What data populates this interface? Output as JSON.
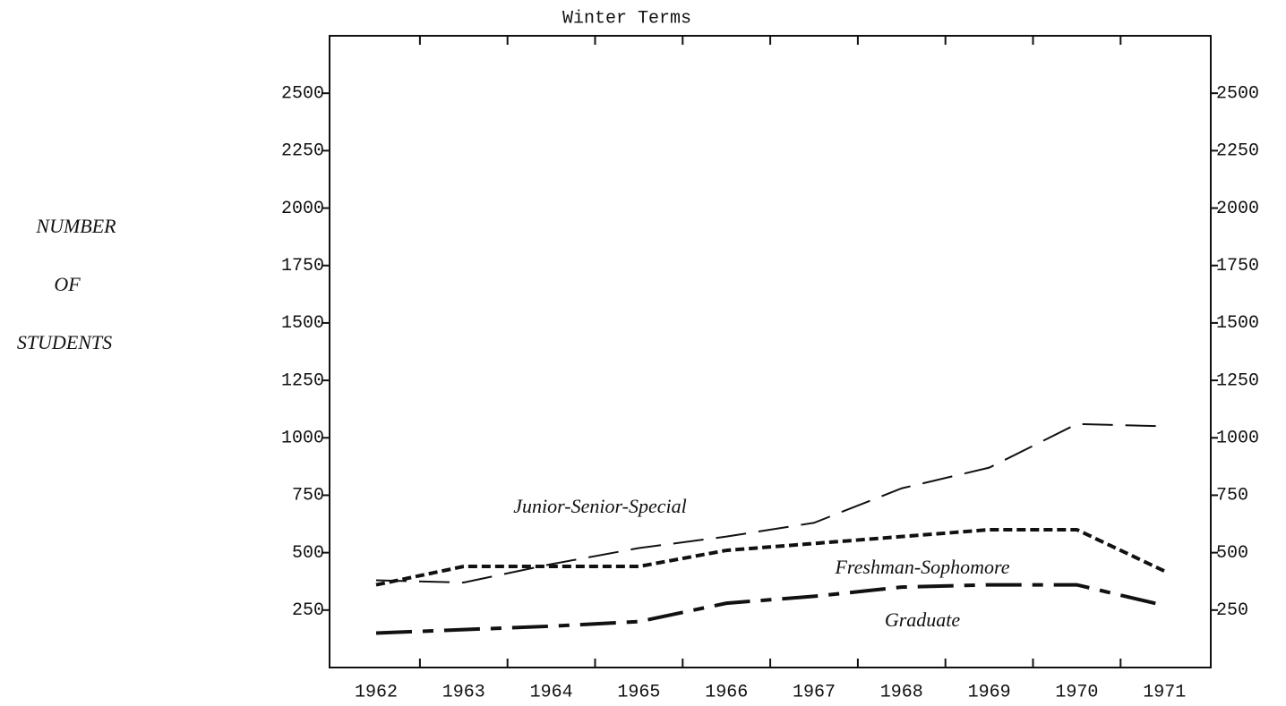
{
  "chart_data": {
    "type": "line",
    "title": "Winter Terms",
    "ylabel": [
      "NUMBER",
      "OF",
      "STUDENTS"
    ],
    "categories": [
      "1962",
      "1963",
      "1964",
      "1965",
      "1966",
      "1967",
      "1968",
      "1969",
      "1970",
      "1971"
    ],
    "series": [
      {
        "name": "Junior-Senior-Special",
        "color": "#111111",
        "dash": "34 14",
        "width": 2,
        "values": [
          380,
          370,
          450,
          520,
          570,
          630,
          780,
          870,
          1060,
          1050
        ]
      },
      {
        "name": "Freshman-Sophomore",
        "color": "#111111",
        "dash": "10 5",
        "width": 4,
        "values": [
          360,
          440,
          440,
          440,
          510,
          540,
          570,
          600,
          600,
          420
        ]
      },
      {
        "name": "Graduate",
        "color": "#111111",
        "dash": "40 12 12 12",
        "width": 4,
        "values": [
          150,
          165,
          180,
          200,
          280,
          310,
          350,
          360,
          360,
          270
        ]
      }
    ],
    "ylim": [
      0,
      2750
    ],
    "yticks": [
      250,
      500,
      750,
      1000,
      1250,
      1500,
      1750,
      2000,
      2250,
      2500
    ],
    "y2lim": [
      0,
      2750
    ],
    "y2ticks": [
      250,
      500,
      750,
      1000,
      1250,
      1500,
      1750,
      2000,
      2250,
      2500
    ]
  }
}
